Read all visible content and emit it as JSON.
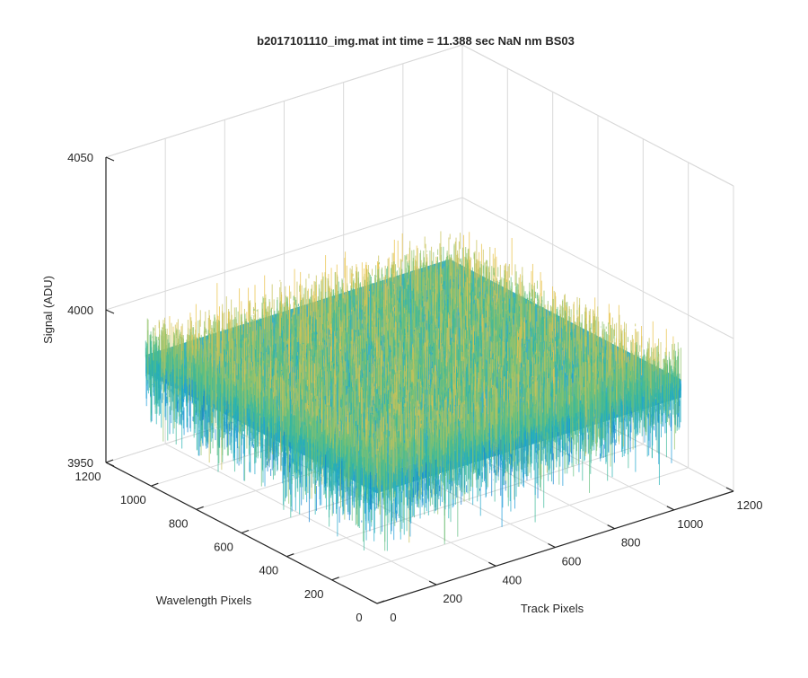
{
  "chart_data": {
    "type": "surface",
    "title": "b2017101110_img.mat int time = 11.388 sec  NaN nm BS03",
    "xlabel": "Track Pixels",
    "ylabel": "Wavelength Pixels",
    "zlabel": "Signal (ADU)",
    "xlim": [
      0,
      1200
    ],
    "ylim": [
      0,
      1200
    ],
    "zlim": [
      3950,
      4050
    ],
    "x_ticks": [
      "0",
      "200",
      "400",
      "600",
      "800",
      "1000",
      "1200"
    ],
    "y_ticks": [
      "0",
      "200",
      "400",
      "600",
      "800",
      "1000",
      "1200"
    ],
    "z_ticks": [
      "3950",
      "4000",
      "4050"
    ],
    "data_extent": {
      "x": [
        0,
        1024
      ],
      "y": [
        0,
        1024
      ]
    },
    "signal_mean": 3992,
    "signal_spread": 6,
    "grid": true,
    "colormap": "parula",
    "colors": {
      "low": "#1f8fd6",
      "mid": "#2ab7a9",
      "high": "#e5c04a",
      "axis": "#262626",
      "grid": "#d9d9d9"
    }
  }
}
